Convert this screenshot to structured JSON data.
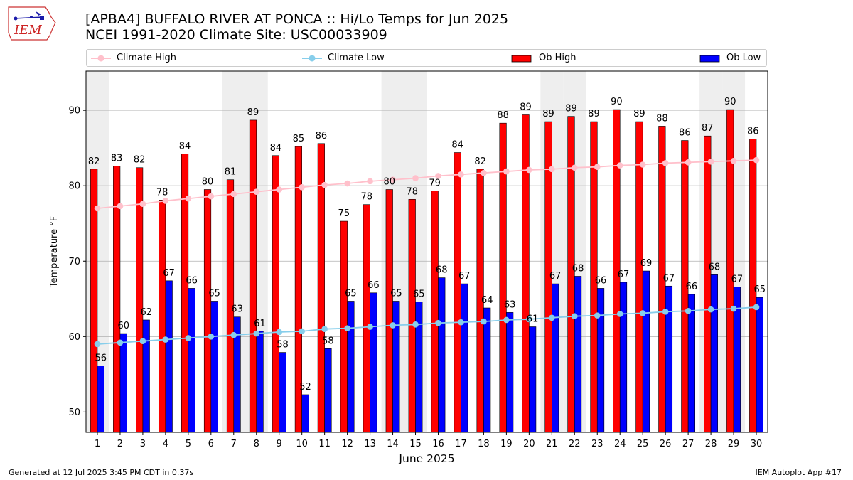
{
  "header": {
    "title_line1": "[APBA4] BUFFALO RIVER AT PONCA :: Hi/Lo Temps for Jun 2025",
    "title_line2": "NCEI 1991-2020 Climate Site: USC00033909",
    "logo_text": "IEM"
  },
  "footer": {
    "generated": "Generated at 12 Jul 2025 3:45 PM CDT in 0.37s",
    "app": "IEM Autoplot App #17"
  },
  "colors": {
    "ob_high": "#ff0000",
    "ob_low": "#0000ff",
    "climate_high": "#ffc0cb",
    "climate_low": "#87ceeb",
    "weekend_shade": "#eeeeee",
    "grid": "#b0b0b0"
  },
  "chart_data": {
    "type": "bar",
    "xlabel": "June 2025",
    "ylabel": "Temperature °F",
    "ylim": [
      47.3,
      95.2
    ],
    "yticks": [
      50,
      60,
      70,
      80,
      90
    ],
    "grid": "horizontal",
    "legend_position": "top",
    "categories": [
      1,
      2,
      3,
      4,
      5,
      6,
      7,
      8,
      9,
      10,
      11,
      12,
      13,
      14,
      15,
      16,
      17,
      18,
      19,
      20,
      21,
      22,
      23,
      24,
      25,
      26,
      27,
      28,
      29,
      30
    ],
    "shaded_days": [
      1,
      7,
      8,
      14,
      15,
      21,
      22,
      28,
      29
    ],
    "series": [
      {
        "name": "Climate High",
        "kind": "line",
        "values": [
          77.0,
          77.3,
          77.6,
          78.0,
          78.3,
          78.6,
          78.9,
          79.2,
          79.5,
          79.8,
          80.1,
          80.3,
          80.6,
          80.8,
          81.0,
          81.3,
          81.5,
          81.7,
          81.9,
          82.1,
          82.2,
          82.4,
          82.5,
          82.7,
          82.8,
          83.0,
          83.1,
          83.2,
          83.3,
          83.4
        ]
      },
      {
        "name": "Climate Low",
        "kind": "line",
        "values": [
          59.0,
          59.2,
          59.4,
          59.6,
          59.8,
          60.0,
          60.2,
          60.4,
          60.6,
          60.7,
          61.0,
          61.1,
          61.3,
          61.5,
          61.6,
          61.8,
          61.9,
          62.0,
          62.2,
          62.3,
          62.5,
          62.7,
          62.8,
          63.0,
          63.1,
          63.3,
          63.4,
          63.6,
          63.7,
          63.9
        ]
      },
      {
        "name": "Ob High",
        "kind": "bar",
        "values": [
          82.2,
          82.6,
          82.4,
          78.1,
          84.2,
          79.5,
          80.8,
          88.7,
          84.0,
          85.2,
          85.6,
          75.3,
          77.5,
          79.5,
          78.2,
          79.3,
          84.4,
          82.2,
          88.3,
          89.4,
          88.5,
          89.2,
          88.5,
          90.1,
          88.5,
          87.9,
          86.0,
          86.6,
          90.1,
          86.2
        ],
        "labels": [
          "82",
          "83",
          "82",
          "78",
          "84",
          "80",
          "81",
          "89",
          "84",
          "85",
          "86",
          "75",
          "78",
          "80",
          "78",
          "79",
          "84",
          "82",
          "88",
          "89",
          "89",
          "89",
          "89",
          "90",
          "89",
          "88",
          "86",
          "87",
          "90",
          "86"
        ]
      },
      {
        "name": "Ob Low",
        "kind": "bar",
        "values": [
          56.1,
          60.4,
          62.2,
          67.4,
          66.4,
          64.7,
          62.6,
          60.7,
          57.9,
          52.3,
          58.4,
          64.7,
          65.8,
          64.7,
          64.6,
          67.8,
          67.0,
          63.8,
          63.2,
          61.3,
          67.0,
          68.0,
          66.4,
          67.2,
          68.7,
          66.7,
          65.6,
          68.2,
          66.6,
          65.2
        ],
        "labels": [
          "56",
          "60",
          "62",
          "67",
          "66",
          "65",
          "63",
          "61",
          "58",
          "52",
          "58",
          "65",
          "66",
          "65",
          "65",
          "68",
          "67",
          "64",
          "63",
          "61",
          "67",
          "68",
          "66",
          "67",
          "69",
          "67",
          "66",
          "68",
          "67",
          "65"
        ]
      }
    ]
  }
}
